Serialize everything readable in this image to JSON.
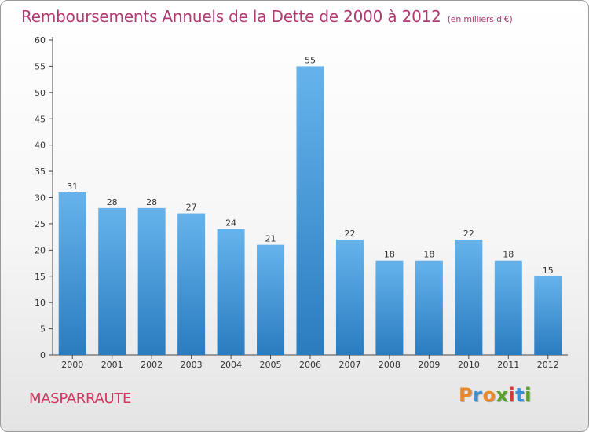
{
  "header": {
    "title": "Remboursements Annuels de la Dette de 2000 à 2012",
    "subtitle": "(en milliers d'€)"
  },
  "commune": "MASPARRAUTE",
  "logo": {
    "letters": [
      {
        "char": "P",
        "color": "#e8892a"
      },
      {
        "char": "r",
        "color": "#3a8fd6"
      },
      {
        "char": "o",
        "color": "#e8892a"
      },
      {
        "char": "x",
        "color": "#5aa02c"
      },
      {
        "char": "i",
        "color": "#d83a3a"
      },
      {
        "char": "t",
        "color": "#3a8fd6"
      },
      {
        "char": "i",
        "color": "#5aa02c"
      }
    ]
  },
  "colors": {
    "bar_top": "#66b3ec",
    "bar_bottom": "#2a7cc0",
    "axis": "#444444",
    "title": "#b03a73"
  },
  "chart_data": {
    "type": "bar",
    "title": "Remboursements Annuels de la Dette de 2000 à 2012",
    "subtitle": "(en milliers d'€)",
    "categories": [
      "2000",
      "2001",
      "2002",
      "2003",
      "2004",
      "2005",
      "2006",
      "2007",
      "2008",
      "2009",
      "2010",
      "2011",
      "2012"
    ],
    "values": [
      31,
      28,
      28,
      27,
      24,
      21,
      55,
      22,
      18,
      18,
      22,
      18,
      15
    ],
    "ylim": [
      0,
      60
    ],
    "yticks": [
      0,
      5,
      10,
      15,
      20,
      25,
      30,
      35,
      40,
      45,
      50,
      55,
      60
    ],
    "grid": false,
    "legend": "none"
  }
}
